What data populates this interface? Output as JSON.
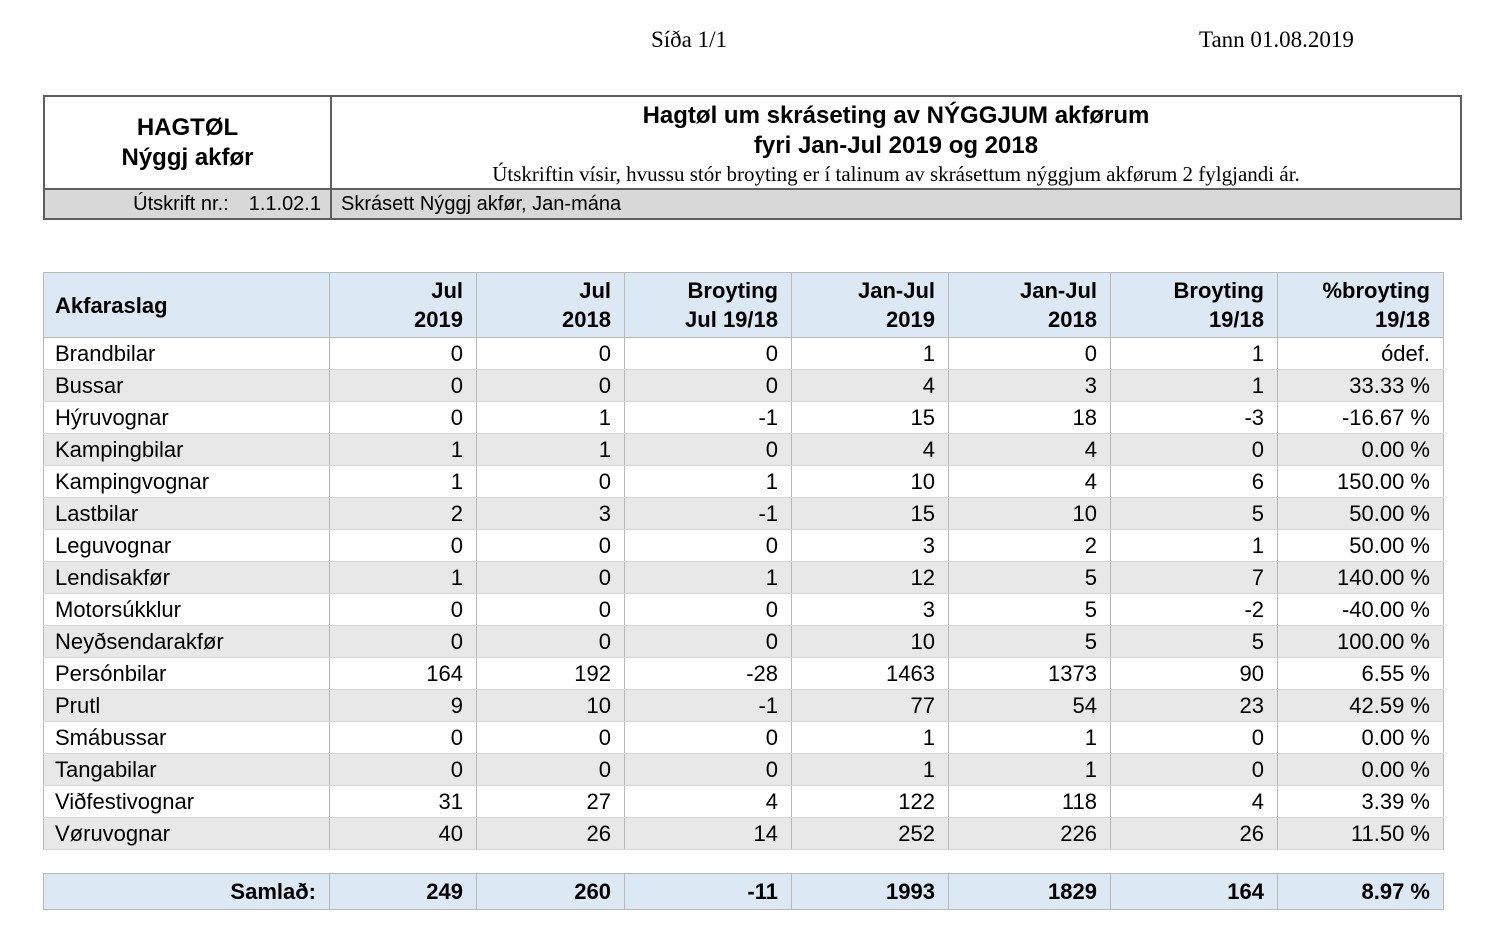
{
  "page": {
    "page_indicator": "Síða 1/1",
    "date_label": "Tann 01.08.2019"
  },
  "report_header": {
    "org_title_line1": "HAGTØL",
    "org_title_line2": "Nýggj akfør",
    "title_line1": "Hagtøl um skráseting av NÝGGJUM akførum",
    "title_line2": "fyri Jan-Jul 2019 og 2018",
    "subtitle": "Útskriftin vísir, hvussu stór broyting er í talinum av skrásettum nýggjum akførum 2 fylgjandi ár.",
    "print_no_label": "Útskrift nr.:",
    "print_no_value": "1.1.02.1",
    "print_name": "Skrásett Nýggj akfør, Jan-mána"
  },
  "table": {
    "columns": [
      "Akfaraslag",
      "Jul\n2019",
      "Jul\n2018",
      "Broyting\nJul 19/18",
      "Jan-Jul\n2019",
      "Jan-Jul\n2018",
      "Broyting\n19/18",
      "%broyting\n19/18"
    ],
    "rows": [
      [
        "Brandbilar",
        "0",
        "0",
        "0",
        "1",
        "0",
        "1",
        "ódef."
      ],
      [
        "Bussar",
        "0",
        "0",
        "0",
        "4",
        "3",
        "1",
        "33.33 %"
      ],
      [
        "Hýruvognar",
        "0",
        "1",
        "-1",
        "15",
        "18",
        "-3",
        "-16.67 %"
      ],
      [
        "Kampingbilar",
        "1",
        "1",
        "0",
        "4",
        "4",
        "0",
        "0.00 %"
      ],
      [
        "Kampingvognar",
        "1",
        "0",
        "1",
        "10",
        "4",
        "6",
        "150.00 %"
      ],
      [
        "Lastbilar",
        "2",
        "3",
        "-1",
        "15",
        "10",
        "5",
        "50.00 %"
      ],
      [
        "Leguvognar",
        "0",
        "0",
        "0",
        "3",
        "2",
        "1",
        "50.00 %"
      ],
      [
        "Lendisakfør",
        "1",
        "0",
        "1",
        "12",
        "5",
        "7",
        "140.00 %"
      ],
      [
        "Motorsúkklur",
        "0",
        "0",
        "0",
        "3",
        "5",
        "-2",
        "-40.00 %"
      ],
      [
        "Neyðsendarakfør",
        "0",
        "0",
        "0",
        "10",
        "5",
        "5",
        "100.00 %"
      ],
      [
        "Persónbilar",
        "164",
        "192",
        "-28",
        "1463",
        "1373",
        "90",
        "6.55 %"
      ],
      [
        "Prutl",
        "9",
        "10",
        "-1",
        "77",
        "54",
        "23",
        "42.59 %"
      ],
      [
        "Smábussar",
        "0",
        "0",
        "0",
        "1",
        "1",
        "0",
        "0.00 %"
      ],
      [
        "Tangabilar",
        "0",
        "0",
        "0",
        "1",
        "1",
        "0",
        "0.00 %"
      ],
      [
        "Viðfestivognar",
        "31",
        "27",
        "4",
        "122",
        "118",
        "4",
        "3.39 %"
      ],
      [
        "Vøruvognar",
        "40",
        "26",
        "14",
        "252",
        "226",
        "26",
        "11.50 %"
      ]
    ],
    "totals": {
      "label": "Samlað:",
      "values": [
        "249",
        "260",
        "-11",
        "1993",
        "1829",
        "164",
        "8.97 %"
      ]
    }
  },
  "colors": {
    "header_blue": "#dce8f4",
    "row_alt_gray": "#e8e8e8",
    "strip_gray": "#d8d8d8"
  }
}
